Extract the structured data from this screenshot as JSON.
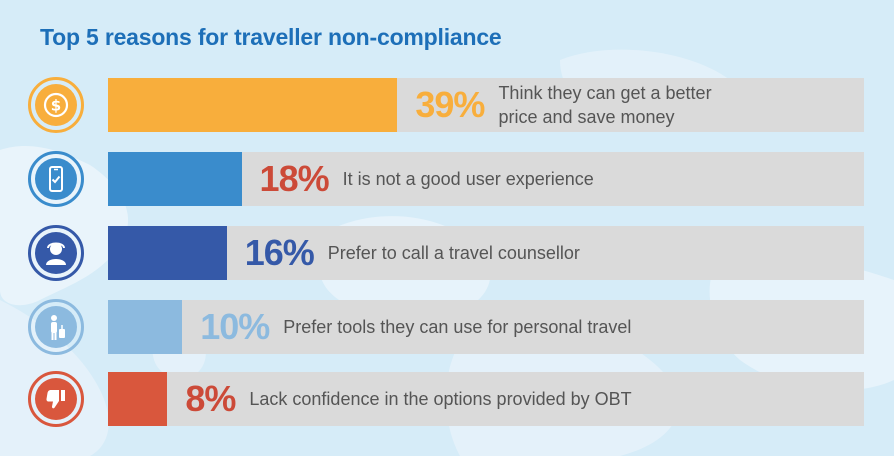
{
  "title": "Top 5 reasons for traveller non-compliance",
  "chart_data": {
    "type": "bar",
    "orientation": "horizontal",
    "title": "Top 5 reasons for traveller non-compliance",
    "categories": [
      "Think they can get  a better price and save money",
      "It is not a good user experience",
      "Prefer to call a travel counsellor",
      "Prefer tools they can use for personal travel",
      "Lack confidence in the options provided by OBT"
    ],
    "values": [
      39,
      18,
      16,
      10,
      8
    ],
    "value_labels": [
      "39%",
      "18%",
      "16%",
      "10%",
      "8%"
    ],
    "unit": "%",
    "xlim": [
      0,
      100
    ]
  },
  "rows": [
    {
      "pct": "39%",
      "desc_line1": "Think they can get  a better",
      "desc_line2": "price and save money",
      "color": "#f8ae3c",
      "pct_color": "#f8ae3c",
      "icon": "dollar-coin-icon"
    },
    {
      "pct": "18%",
      "desc_line1": "It is not a good user experience",
      "desc_line2": "",
      "color": "#3a8ccc",
      "pct_color": "#cc4a38",
      "icon": "smartphone-check-icon"
    },
    {
      "pct": "16%",
      "desc_line1": "Prefer to call a travel counsellor",
      "desc_line2": "",
      "color": "#3559a8",
      "pct_color": "#3559a8",
      "icon": "counsellor-person-icon"
    },
    {
      "pct": "10%",
      "desc_line1": "Prefer tools they can use for personal travel",
      "desc_line2": "",
      "color": "#8cbadf",
      "pct_color": "#8cbadf",
      "icon": "traveller-luggage-icon"
    },
    {
      "pct": "8%",
      "desc_line1": "Lack confidence in the options provided by OBT",
      "desc_line2": "",
      "color": "#d9573d",
      "pct_color": "#cc4a38",
      "icon": "thumbs-down-icon"
    }
  ]
}
